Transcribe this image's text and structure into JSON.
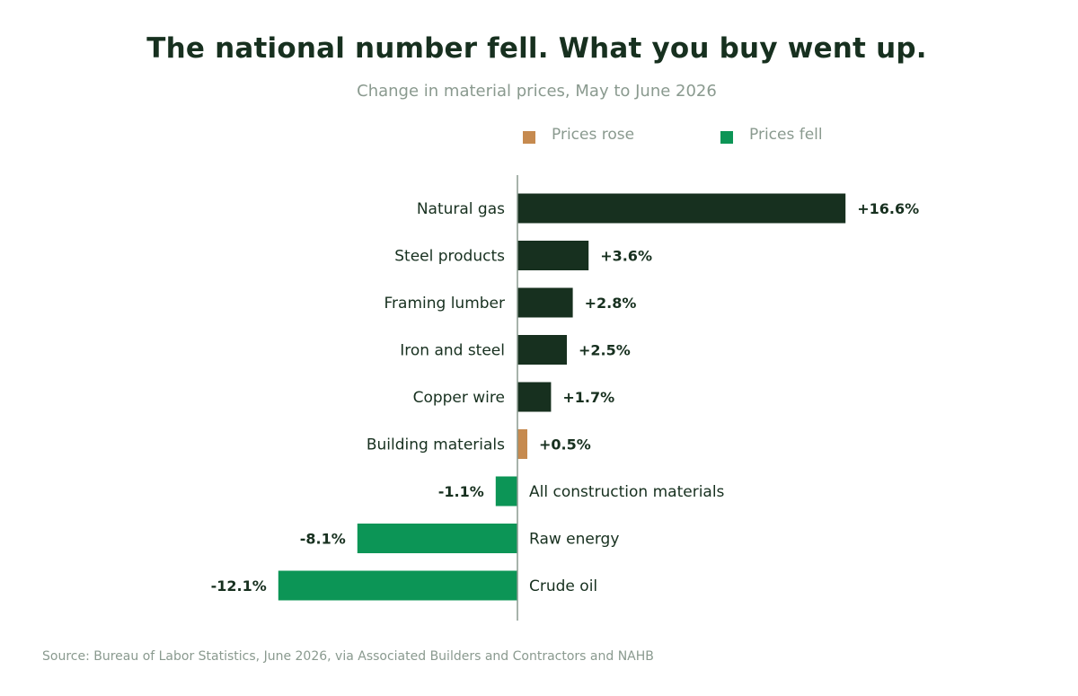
{
  "title": "The national number fell. What you buy went up.",
  "subtitle": "Change in material prices, May to June 2026",
  "legend": {
    "rose": {
      "label": "Prices rose",
      "color": "#c68a4f"
    },
    "fell": {
      "label": "Prices fell",
      "color": "#0c9556"
    }
  },
  "source": "Source: Bureau of Labor Statistics, June 2026, via Associated Builders and Contractors and NAHB",
  "colors": {
    "dark": "#17301f",
    "rose": "#c68a4f",
    "fell": "#0c9556",
    "axis": "#8a9a8f"
  },
  "chart_data": {
    "type": "bar",
    "orientation": "horizontal",
    "unit": "%",
    "categories": [
      "Natural gas",
      "Steel products",
      "Framing lumber",
      "Iron and steel",
      "Copper wire",
      "Building materials",
      "All construction materials",
      "Raw energy",
      "Crude oil"
    ],
    "values": [
      16.6,
      3.6,
      2.8,
      2.5,
      1.7,
      0.5,
      -1.1,
      -8.1,
      -12.1
    ],
    "value_labels": [
      "+16.6%",
      "+3.6%",
      "+2.8%",
      "+2.5%",
      "+1.7%",
      "+0.5%",
      "-1.1%",
      "-8.1%",
      "-12.1%"
    ],
    "bar_colors": [
      "dark",
      "dark",
      "dark",
      "dark",
      "dark",
      "rose",
      "fell",
      "fell",
      "fell"
    ],
    "xlim": [
      -12.1,
      16.6
    ],
    "grid": false,
    "legend_position": "top-right"
  }
}
